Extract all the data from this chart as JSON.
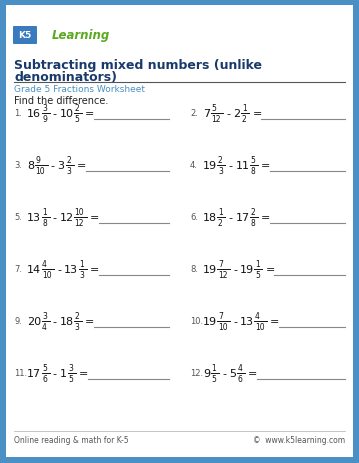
{
  "title_line1": "Subtracting mixed numbers (unlike",
  "title_line2": "denominators)",
  "subtitle": "Grade 5 Fractions Worksheet",
  "instruction": "Find the difference.",
  "bg_color": "#4a90c4",
  "inner_bg": "#ffffff",
  "title_color": "#1a3a6b",
  "subtitle_color": "#4a90c4",
  "footer_left": "Online reading & math for K-5",
  "footer_right": "©  www.k5learning.com",
  "problems": [
    {
      "num": "1.",
      "whole1": "16",
      "num1": "3",
      "den1": "9",
      "whole2": "10",
      "num2": "2",
      "den2": "5"
    },
    {
      "num": "2.",
      "whole1": "7",
      "num1": "5",
      "den1": "12",
      "whole2": "2",
      "num2": "1",
      "den2": "2"
    },
    {
      "num": "3.",
      "whole1": "8",
      "num1": "9",
      "den1": "10",
      "whole2": "3",
      "num2": "2",
      "den2": "3"
    },
    {
      "num": "4.",
      "whole1": "19",
      "num1": "2",
      "den1": "3",
      "whole2": "11",
      "num2": "5",
      "den2": "8"
    },
    {
      "num": "5.",
      "whole1": "13",
      "num1": "1",
      "den1": "8",
      "whole2": "12",
      "num2": "10",
      "den2": "12"
    },
    {
      "num": "6.",
      "whole1": "18",
      "num1": "1",
      "den1": "2",
      "whole2": "17",
      "num2": "2",
      "den2": "8"
    },
    {
      "num": "7.",
      "whole1": "14",
      "num1": "4",
      "den1": "10",
      "whole2": "13",
      "num2": "1",
      "den2": "3"
    },
    {
      "num": "8.",
      "whole1": "19",
      "num1": "7",
      "den1": "12",
      "whole2": "19",
      "num2": "1",
      "den2": "5"
    },
    {
      "num": "9.",
      "whole1": "20",
      "num1": "3",
      "den1": "4",
      "whole2": "18",
      "num2": "2",
      "den2": "3"
    },
    {
      "num": "10.",
      "whole1": "19",
      "num1": "7",
      "den1": "10",
      "whole2": "13",
      "num2": "4",
      "den2": "10"
    },
    {
      "num": "11.",
      "whole1": "17",
      "num1": "5",
      "den1": "6",
      "whole2": "1",
      "num2": "3",
      "den2": "5"
    },
    {
      "num": "12.",
      "whole1": "9",
      "num1": "1",
      "den1": "5",
      "whole2": "5",
      "num2": "4",
      "den2": "6"
    }
  ]
}
